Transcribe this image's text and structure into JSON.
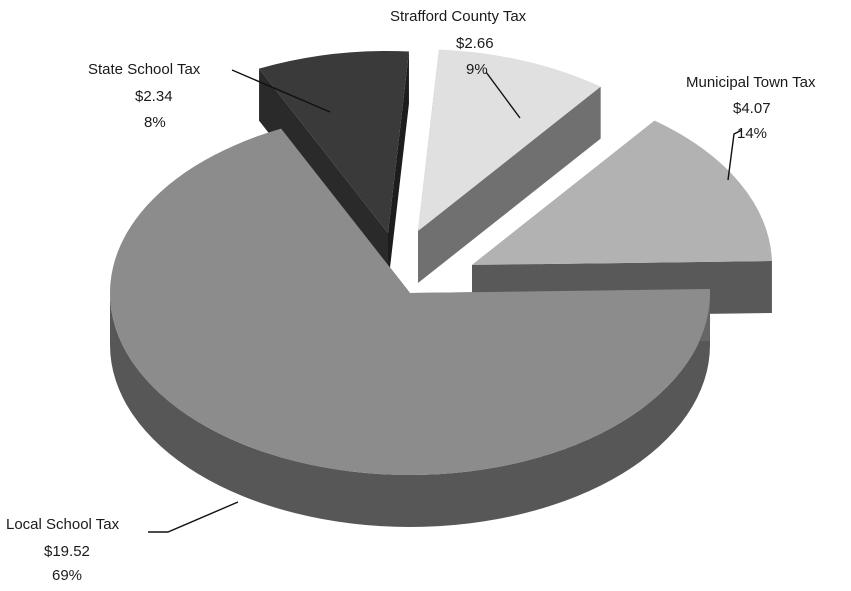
{
  "chart_data": {
    "type": "pie",
    "style": "3d-exploded",
    "title": "",
    "slices": [
      {
        "label": "Local School Tax",
        "value": 19.52,
        "value_text": "$19.52",
        "percent_text": "69%",
        "color": "#8c8c8c"
      },
      {
        "label": "State School Tax",
        "value": 2.34,
        "value_text": "$2.34",
        "percent_text": "8%",
        "color": "#3a3a3a"
      },
      {
        "label": "Strafford County Tax",
        "value": 2.66,
        "value_text": "$2.66",
        "percent_text": "9%",
        "color": "#e0e0e0"
      },
      {
        "label": "Municipal Town Tax",
        "value": 4.07,
        "value_text": "$4.07",
        "percent_text": "14%",
        "color": "#b2b2b2"
      }
    ]
  }
}
